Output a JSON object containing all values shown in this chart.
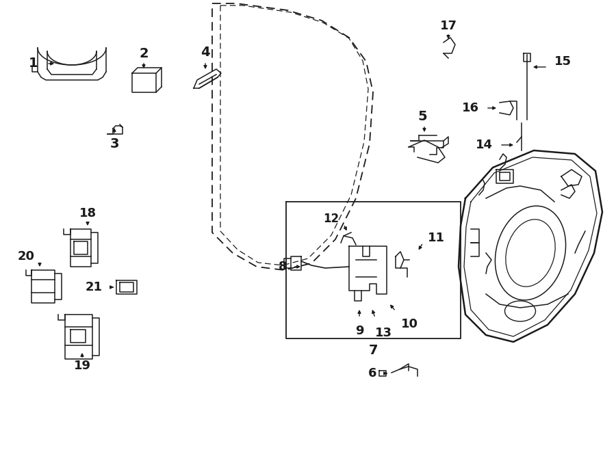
{
  "bg_color": "#ffffff",
  "line_color": "#1a1a1a",
  "figsize": [
    9.0,
    6.61
  ],
  "dpi": 100,
  "xlim": [
    0,
    900
  ],
  "ylim": [
    0,
    661
  ]
}
